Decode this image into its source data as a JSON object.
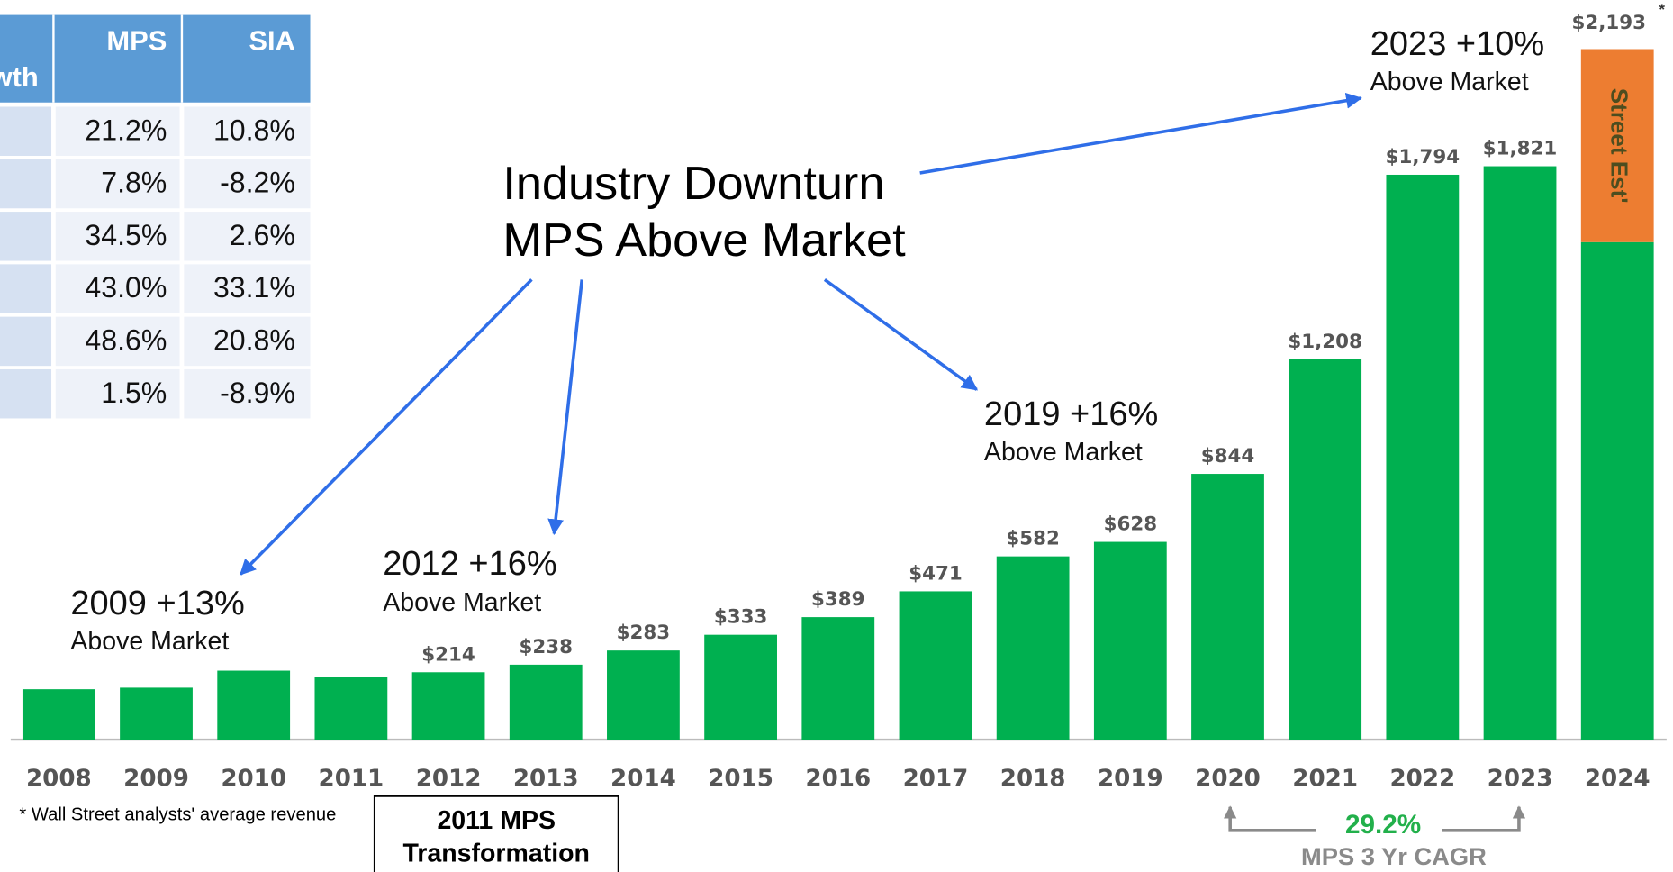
{
  "chart_data": {
    "type": "bar",
    "categories": [
      "2008",
      "2009",
      "2010",
      "2011",
      "2012",
      "2013",
      "2014",
      "2015",
      "2016",
      "2017",
      "2018",
      "2019",
      "2020",
      "2021",
      "2022",
      "2023",
      "2024"
    ],
    "series": [
      {
        "color": "#00b050",
        "values": [
          160,
          165,
          219,
          198,
          214,
          238,
          283,
          333,
          389,
          471,
          582,
          628,
          844,
          1208,
          1794,
          1821,
          1580
        ],
        "value_labels": [
          null,
          null,
          null,
          null,
          "$214",
          "$238",
          "$283",
          "$333",
          "$389",
          "$471",
          "$582",
          "$628",
          "$844",
          "$1,208",
          "$1,794",
          "$1,821",
          null
        ]
      },
      {
        "name": "Street Est'",
        "color": "#ed7d31",
        "values": [
          null,
          null,
          null,
          null,
          null,
          null,
          null,
          null,
          null,
          null,
          null,
          null,
          null,
          null,
          null,
          null,
          613
        ]
      }
    ],
    "totals": [
      null,
      null,
      null,
      null,
      null,
      null,
      null,
      null,
      null,
      null,
      null,
      null,
      null,
      null,
      null,
      null,
      2193
    ],
    "total_labels": [
      null,
      null,
      null,
      null,
      null,
      null,
      null,
      null,
      null,
      null,
      null,
      null,
      null,
      null,
      null,
      null,
      "$2,193"
    ],
    "total_note": "*",
    "headline": [
      "Industry Downturn",
      "MPS Above Market"
    ],
    "annotations": [
      {
        "title": "2009 +13%",
        "text": "Above Market"
      },
      {
        "title": "2012 +16%",
        "text": "Above Market"
      },
      {
        "title": "2019 +16%",
        "text": "Above Market"
      },
      {
        "title": "2023 +10%",
        "text": "Above Market"
      }
    ],
    "footnote": "* Wall Street analysts' average revenue",
    "box": [
      "2011 MPS",
      "Transformation"
    ],
    "cagr": {
      "value": "29.2%",
      "label": "MPS 3 Yr CAGR"
    }
  },
  "table": {
    "header": [
      "wth",
      "MPS",
      "SIA"
    ],
    "rows": [
      [
        "21.2%",
        "10.8%"
      ],
      [
        "7.8%",
        "-8.2%"
      ],
      [
        "34.5%",
        "2.6%"
      ],
      [
        "43.0%",
        "33.1%"
      ],
      [
        "48.6%",
        "20.8%"
      ],
      [
        "1.5%",
        "-8.9%"
      ]
    ]
  }
}
